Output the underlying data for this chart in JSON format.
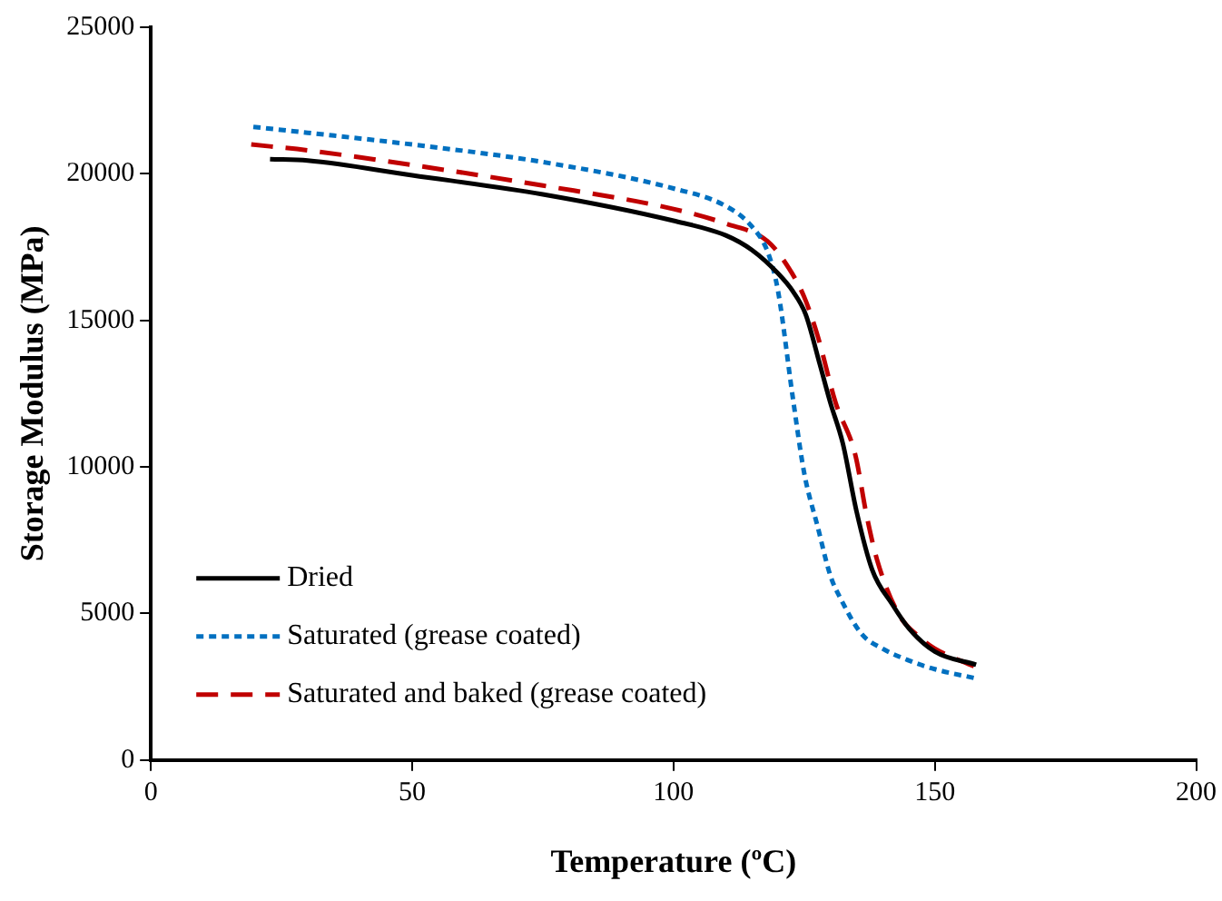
{
  "chart_data": {
    "type": "line",
    "xlabel": "Temperature (ºC)",
    "ylabel": "Storage Modulus (MPa)",
    "xlim": [
      0,
      200
    ],
    "xticks": [
      0,
      50,
      100,
      150,
      200
    ],
    "ylim": [
      0,
      25000
    ],
    "yticks": [
      0,
      5000,
      10000,
      15000,
      20000,
      25000
    ],
    "grid": false,
    "legend": "bottom left",
    "marker": "none",
    "series": [
      {
        "name": "Dried",
        "color": "#000000",
        "line_style": "solid",
        "x": [
          22.8,
          30,
          50,
          75,
          100,
          110,
          115,
          120,
          122.8,
          125.3,
          128,
          130,
          132.4,
          135,
          138,
          141.9,
          145,
          150,
          157.9
        ],
        "values": [
          20500,
          20450,
          19950,
          19300,
          18400,
          17900,
          17400,
          16600,
          16000,
          15200,
          13500,
          12200,
          10800,
          8500,
          6500,
          5300,
          4500,
          3700,
          3250
        ]
      },
      {
        "name": "Saturated (grease coated)",
        "color": "#0070c0",
        "line_style": "dotted",
        "x": [
          19.6,
          30,
          50,
          75,
          100,
          110,
          115,
          118.1,
          120,
          122.8,
          125,
          127.6,
          130,
          132,
          136,
          140,
          145,
          150,
          157.5
        ],
        "values": [
          21600,
          21400,
          21000,
          20400,
          19500,
          18900,
          18200,
          17300,
          16000,
          12400,
          9800,
          7950,
          6300,
          5500,
          4300,
          3800,
          3400,
          3100,
          2800
        ]
      },
      {
        "name": "Saturated and baked (grease coated)",
        "color": "#c00000",
        "line_style": "dashed",
        "x": [
          19.2,
          30,
          50,
          75,
          100,
          110,
          118,
          122,
          125,
          127.6,
          131,
          134.8,
          137,
          139,
          143,
          147,
          150,
          157.5
        ],
        "values": [
          21000,
          20800,
          20300,
          19600,
          18800,
          18300,
          17700,
          16800,
          15800,
          14460,
          12200,
          10400,
          8300,
          6800,
          5000,
          4200,
          3800,
          3200
        ]
      }
    ]
  }
}
